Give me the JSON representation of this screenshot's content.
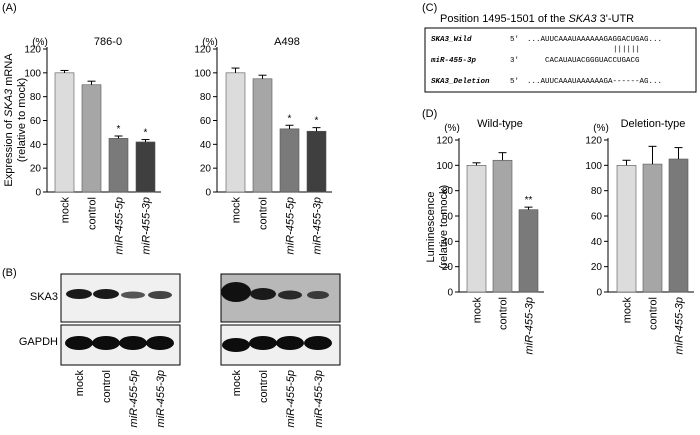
{
  "panels": {
    "A": "(A)",
    "B": "(B)",
    "C": "(C)",
    "D": "(D)"
  },
  "colors": {
    "mock": "#dcdcdc",
    "control": "#a6a6a6",
    "mir5p": "#7a7a7a",
    "mir3p": "#3f3f3f",
    "blot_bg": "#f2f2f2",
    "band": "#111111"
  },
  "panelA": {
    "ylabel_line1_pre": "Expression of ",
    "ylabel_line1_gene": "SKA3",
    "ylabel_line1_post": " mRNA",
    "ylabel_line2": "(relative to mock)",
    "unit": "(%)",
    "categories": [
      "mock",
      "control",
      "miR-455-5p",
      "miR-455-3p"
    ]
  },
  "panelB": {
    "row_labels": [
      "SKA3",
      "GAPDH"
    ],
    "categories": [
      "mock",
      "control",
      "miR-455-5p",
      "miR-455-3p"
    ]
  },
  "panelC": {
    "title_pre": "Position  1495-1501 of the ",
    "title_gene": "SKA3",
    "title_post": " 3'-UTR",
    "rows": [
      {
        "name": "SKA3_Wild",
        "end": "5'",
        "seq": "...AUUCAAAUAAAAAAGAGGACUGAG..."
      },
      {
        "name": "miR-455-3p",
        "end": "3'",
        "seq": "CACAUAUACGGGUACCUGACG"
      },
      {
        "name": "SKA3_Deletion",
        "end": "5'",
        "seq": "...AUUCAAAUAAAAAAGA------AG..."
      }
    ],
    "pairing": "||||||"
  },
  "panelD": {
    "ylabel_line1": "Luminescence",
    "ylabel_line2": "(relative to mock)",
    "unit": "(%)",
    "categories": [
      "mock",
      "control",
      "miR-455-3p"
    ]
  },
  "chart_data": [
    {
      "type": "bar",
      "title": "786-0",
      "categories": [
        "mock",
        "control",
        "miR-455-5p",
        "miR-455-3p"
      ],
      "values": [
        100,
        90,
        45,
        42
      ],
      "errors": [
        2,
        3,
        2,
        2
      ],
      "significance": [
        "",
        "",
        "*",
        "*"
      ],
      "ylabel": "Expression of SKA3 mRNA (relative to mock)",
      "ylim": [
        0,
        120
      ],
      "yticks": [
        0,
        20,
        40,
        60,
        80,
        100,
        120
      ]
    },
    {
      "type": "bar",
      "title": "A498",
      "categories": [
        "mock",
        "control",
        "miR-455-5p",
        "miR-455-3p"
      ],
      "values": [
        100,
        95,
        53,
        51
      ],
      "errors": [
        4,
        3,
        3,
        3
      ],
      "significance": [
        "",
        "",
        "*",
        "*"
      ],
      "ylabel": "",
      "ylim": [
        0,
        120
      ],
      "yticks": [
        0,
        20,
        40,
        60,
        80,
        100,
        120
      ]
    },
    {
      "type": "bar",
      "title": "Wild-type",
      "categories": [
        "mock",
        "control",
        "miR-455-3p"
      ],
      "values": [
        100,
        104,
        65
      ],
      "errors": [
        2,
        6,
        2
      ],
      "significance": [
        "",
        "",
        "**"
      ],
      "ylabel": "Luminescence (relative to mock)",
      "ylim": [
        0,
        120
      ],
      "yticks": [
        0,
        20,
        40,
        60,
        80,
        100,
        120
      ]
    },
    {
      "type": "bar",
      "title": "Deletion-type",
      "categories": [
        "mock",
        "control",
        "miR-455-3p"
      ],
      "values": [
        100,
        101,
        105
      ],
      "errors": [
        4,
        14,
        9
      ],
      "significance": [
        "",
        "",
        ""
      ],
      "ylabel": "",
      "ylim": [
        0,
        120
      ],
      "yticks": [
        0,
        20,
        40,
        60,
        80,
        100,
        120
      ]
    }
  ]
}
